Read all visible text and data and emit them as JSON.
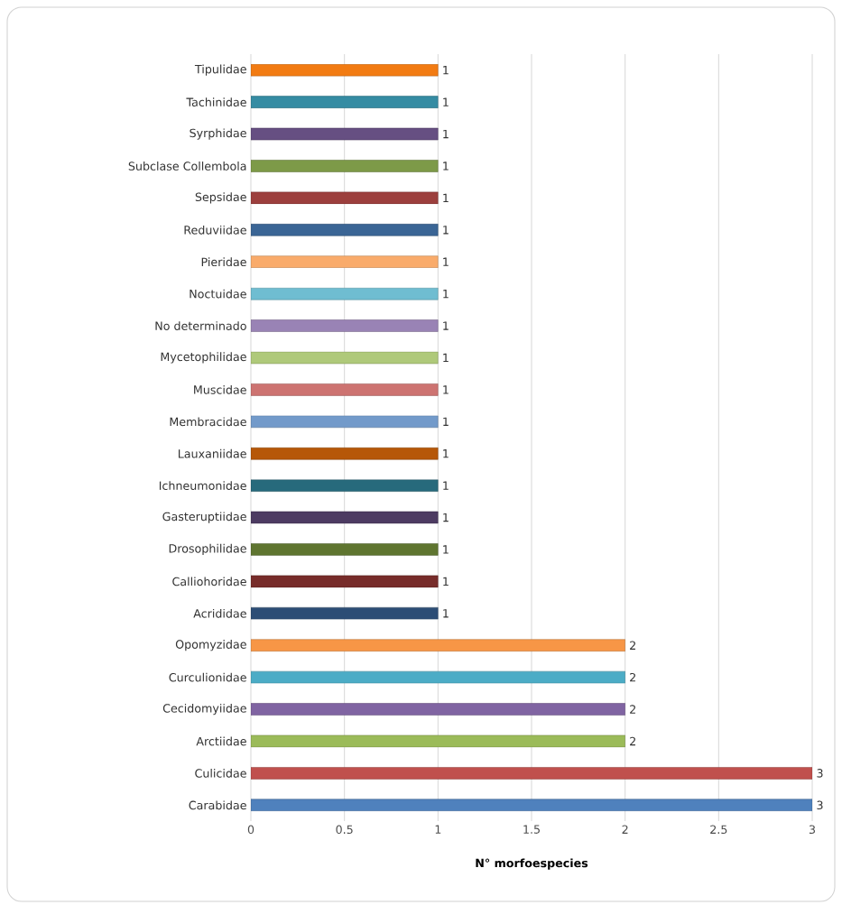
{
  "chart_data": {
    "type": "bar",
    "orientation": "horizontal",
    "xlabel": "N° morfoespecies",
    "categories": [
      "Tipulidae",
      "Tachinidae",
      "Syrphidae",
      "Subclase Collembola",
      "Sepsidae",
      "Reduviidae",
      "Pieridae",
      "Noctuidae",
      "No determinado",
      "Mycetophilidae",
      "Muscidae",
      "Membracidae",
      "Lauxaniidae",
      "Ichneumonidae",
      "Gasteruptiidae",
      "Drosophilidae",
      "Calliohoridae",
      "Acrididae",
      "Opomyzidae",
      "Curculionidae",
      "Cecidomyiidae",
      "Arctiidae",
      "Culicidae",
      "Carabidae"
    ],
    "values": [
      1,
      1,
      1,
      1,
      1,
      1,
      1,
      1,
      1,
      1,
      1,
      1,
      1,
      1,
      1,
      1,
      1,
      1,
      2,
      2,
      2,
      2,
      3,
      3
    ],
    "colors": [
      "#f27b12",
      "#358ca3",
      "#664f82",
      "#7d9a48",
      "#9c3f3d",
      "#3a6595",
      "#f9ab6b",
      "#6fbdd1",
      "#9983b5",
      "#afc97a",
      "#cd7371",
      "#729aca",
      "#b65708",
      "#276a7c",
      "#4d3b62",
      "#5f7530",
      "#772c2a",
      "#2c4d75",
      "#f79646",
      "#4bacc6",
      "#8064a2",
      "#9bbb59",
      "#c0504d",
      "#4f81bd"
    ],
    "xlim": [
      0,
      3
    ],
    "xticks": [
      0,
      0.5,
      1,
      1.5,
      2,
      2.5,
      3
    ],
    "grid": "x",
    "data_labels": true
  }
}
